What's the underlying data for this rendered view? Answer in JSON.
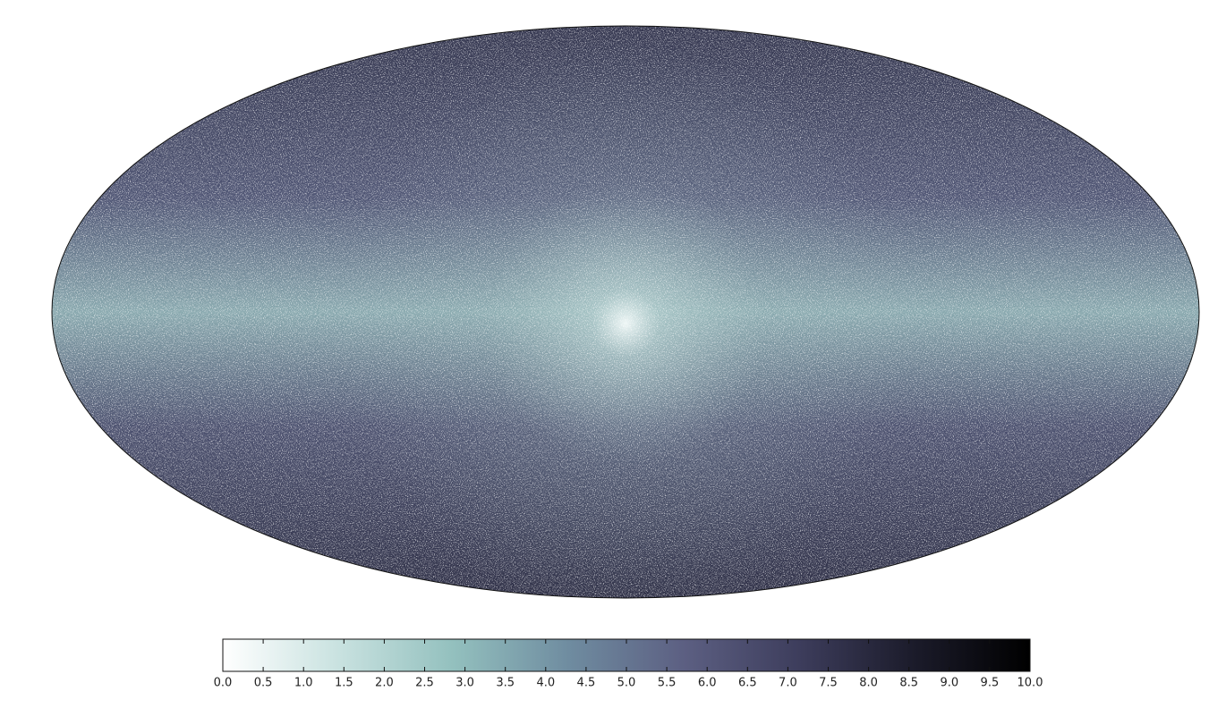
{
  "chart_data": {
    "type": "mollweide",
    "colormap": [
      "#ffffff",
      "#c9e2e0",
      "#93c0be",
      "#6f8ca0",
      "#5c5f82",
      "#3d3d5c",
      "#1b1b2a",
      "#000000"
    ],
    "xlim": [
      0,
      10
    ],
    "xticks": [
      {
        "value": 0,
        "label": "0.0"
      },
      0.5,
      {
        "value": 1,
        "label": "1.0"
      },
      1.5,
      {
        "value": 2,
        "label": "2.0"
      },
      2.5,
      {
        "value": 3,
        "label": "3.0"
      },
      3.5,
      {
        "value": 4,
        "label": "4.0"
      },
      4.5,
      {
        "value": 5,
        "label": "5.0"
      },
      5.5,
      {
        "value": 6,
        "label": "6.0"
      },
      6.5,
      {
        "value": 7,
        "label": "7.0"
      },
      7.5,
      {
        "value": 8,
        "label": "8.0"
      },
      8.5,
      {
        "value": 9,
        "label": "9.0"
      },
      9.5,
      {
        "value": 10,
        "label": "10.0"
      }
    ]
  }
}
